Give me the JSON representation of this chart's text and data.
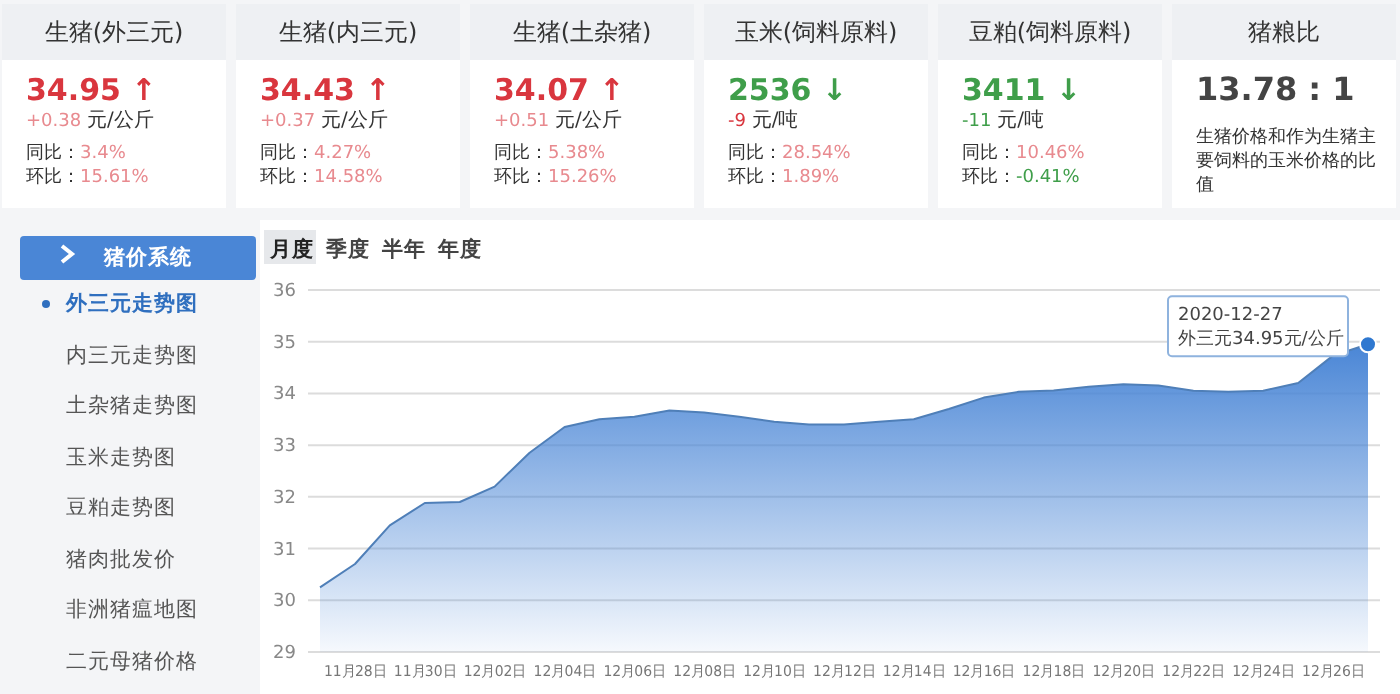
{
  "chart_data": [
    {
      "type": "other",
      "title": "生猪(外三元)",
      "annotations": [
        "34.95 ↑",
        "+0.38",
        "元/公斤",
        "同比：",
        "3.4%",
        "环比：",
        "15.61%"
      ],
      "colors": [
        "#d9363e",
        "#e88a8f",
        "#333333",
        "#333333",
        "#e88a8f",
        "#333333",
        "#e88a8f"
      ]
    },
    {
      "type": "other",
      "title": "生猪(内三元)",
      "annotations": [
        "34.43 ↑",
        "+0.37",
        "元/公斤",
        "同比：",
        "4.27%",
        "环比：",
        "14.58%"
      ],
      "colors": [
        "#d9363e",
        "#e88a8f",
        "#333333",
        "#333333",
        "#e88a8f",
        "#333333",
        "#e88a8f"
      ]
    },
    {
      "type": "other",
      "title": "生猪(土杂猪)",
      "annotations": [
        "34.07 ↑",
        "+0.51",
        "元/公斤",
        "同比：",
        "5.38%",
        "环比：",
        "15.26%"
      ],
      "colors": [
        "#d9363e",
        "#e88a8f",
        "#333333",
        "#333333",
        "#e88a8f",
        "#333333",
        "#e88a8f"
      ]
    },
    {
      "type": "other",
      "title": "玉米(饲料原料)",
      "annotations": [
        "2536 ↓",
        "-9",
        "元/吨",
        "同比：",
        "28.54%",
        "环比：",
        "1.89%"
      ],
      "colors": [
        "#3f9e4a",
        "#d9363e",
        "#333333",
        "#333333",
        "#e88a8f",
        "#333333",
        "#e88a8f"
      ]
    },
    {
      "type": "other",
      "title": "豆粕(饲料原料)",
      "annotations": [
        "3411 ↓",
        "-11",
        "元/吨",
        "同比：",
        "10.46%",
        "环比：",
        "-0.41%"
      ],
      "colors": [
        "#3f9e4a",
        "#3f9e4a",
        "#333333",
        "#333333",
        "#e88a8f",
        "#333333",
        "#3f9e4a"
      ]
    },
    {
      "type": "other",
      "title": "猪粮比",
      "annotations": [
        "13.78 : 1",
        "生猪价格和作为生猪主要饲料的玉米价格的比值"
      ],
      "colors": [
        "#444444",
        "#333333"
      ]
    },
    {
      "type": "other",
      "title": "猪价系统",
      "annotations": [
        "外三元走势图",
        "内三元走势图",
        "土杂猪走势图",
        "玉米走势图",
        "豆粕走势图",
        "猪肉批发价",
        "非洲猪瘟地图",
        "二元母猪价格"
      ]
    },
    {
      "type": "area",
      "annotations": [
        "月度",
        "季度",
        "半年",
        "年度",
        "2020-12-27\n外三元34.95元/公斤"
      ],
      "categories": [
        null,
        "11月28日",
        null,
        "11月30日",
        null,
        "12月02日",
        null,
        "12月04日",
        null,
        "12月06日",
        null,
        "12月08日",
        null,
        "12月10日",
        null,
        "12月12日",
        null,
        "12月14日",
        null,
        "12月16日",
        null,
        "12月18日",
        null,
        "12月20日",
        null,
        "12月22日",
        null,
        "12月24日",
        null,
        "12月26日",
        null
      ],
      "series": [
        {
          "color": "#4a86d6",
          "values": [
            30.25,
            30.7,
            31.45,
            31.88,
            31.9,
            32.2,
            32.85,
            33.35,
            33.5,
            33.55,
            33.67,
            33.63,
            33.55,
            33.45,
            33.4,
            33.4,
            33.45,
            33.5,
            33.7,
            33.92,
            34.03,
            34.06,
            34.13,
            34.18,
            34.15,
            34.05,
            34.03,
            34.05,
            34.2,
            34.73,
            34.95
          ]
        }
      ],
      "ylim": [
        29,
        36
      ],
      "yticks": [
        29,
        30,
        31,
        32,
        33,
        34,
        35,
        36
      ],
      "grid": "y"
    }
  ]
}
